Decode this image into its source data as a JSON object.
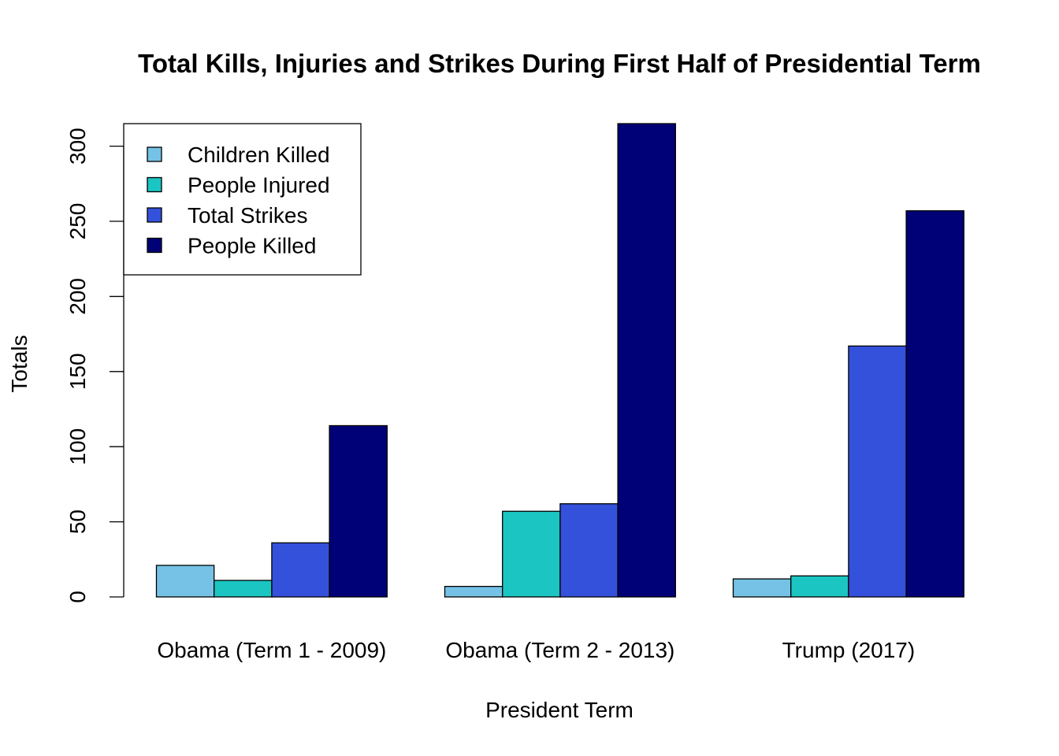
{
  "chart_data": {
    "type": "bar",
    "title": "Total Kills, Injuries and Strikes During First Half of Presidential Term",
    "xlabel": "President Term",
    "ylabel": "Totals",
    "categories": [
      "Obama (Term 1 - 2009)",
      "Obama (Term 2 - 2013)",
      "Trump (2017)"
    ],
    "series": [
      {
        "name": "Children Killed",
        "color": "#75C2E6",
        "values": [
          21,
          7,
          12
        ]
      },
      {
        "name": "People Injured",
        "color": "#1BC5C2",
        "values": [
          11,
          57,
          14
        ]
      },
      {
        "name": "Total Strikes",
        "color": "#3451DB",
        "values": [
          36,
          62,
          167
        ]
      },
      {
        "name": "People Killed",
        "color": "#000077",
        "values": [
          114,
          315,
          257
        ]
      }
    ],
    "yticks": [
      "0",
      "50",
      "100",
      "150",
      "200",
      "250",
      "300"
    ],
    "ylim": [
      0,
      315
    ],
    "grid": false,
    "legend_position": "top-left",
    "barmode": "grouped"
  }
}
